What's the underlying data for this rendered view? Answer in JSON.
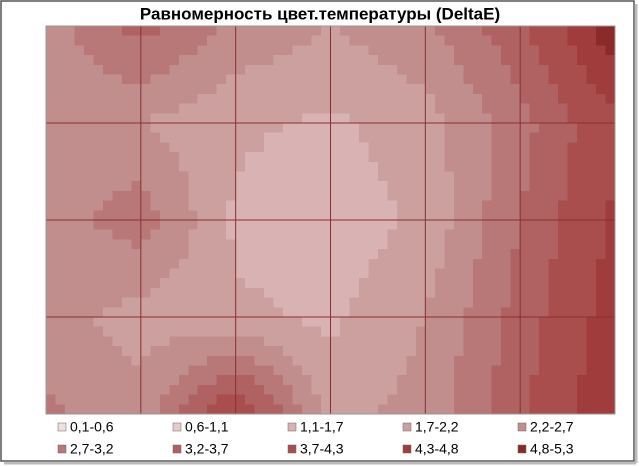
{
  "chart_data": {
    "type": "contour",
    "title": "Равномерность цвет.температуры (DeltaE)",
    "z": [
      [
        2.4,
        3.4,
        2.6,
        2.2,
        2.6,
        3.6,
        5.2
      ],
      [
        2.6,
        2.2,
        1.8,
        1.6,
        2.0,
        3.0,
        4.2
      ],
      [
        2.4,
        3.0,
        1.6,
        1.4,
        1.8,
        3.2,
        4.4
      ],
      [
        2.4,
        2.0,
        1.8,
        1.6,
        2.2,
        3.4,
        4.6
      ],
      [
        2.8,
        2.4,
        4.4,
        2.0,
        2.4,
        3.6,
        4.8
      ]
    ],
    "levels": [
      0.1,
      0.6,
      1.1,
      1.7,
      2.2,
      2.7,
      3.2,
      3.7,
      4.3,
      4.8,
      5.3
    ],
    "bands": [
      {
        "name": "0,1-0,6",
        "color": "#f2dede"
      },
      {
        "name": "0,6-1,1",
        "color": "#e8caca"
      },
      {
        "name": "1,1-1,7",
        "color": "#d9b3b3"
      },
      {
        "name": "1,7-2,2",
        "color": "#cda0a0"
      },
      {
        "name": "2,2-2,7",
        "color": "#c28d8d"
      },
      {
        "name": "2,7-3,2",
        "color": "#b87878"
      },
      {
        "name": "3,2-3,7",
        "color": "#b06262"
      },
      {
        "name": "3,7-4,3",
        "color": "#a94d4d"
      },
      {
        "name": "4,3-4,8",
        "color": "#a03c3c"
      },
      {
        "name": "4,8-5,3",
        "color": "#8a2a2a"
      }
    ],
    "grid": true
  }
}
